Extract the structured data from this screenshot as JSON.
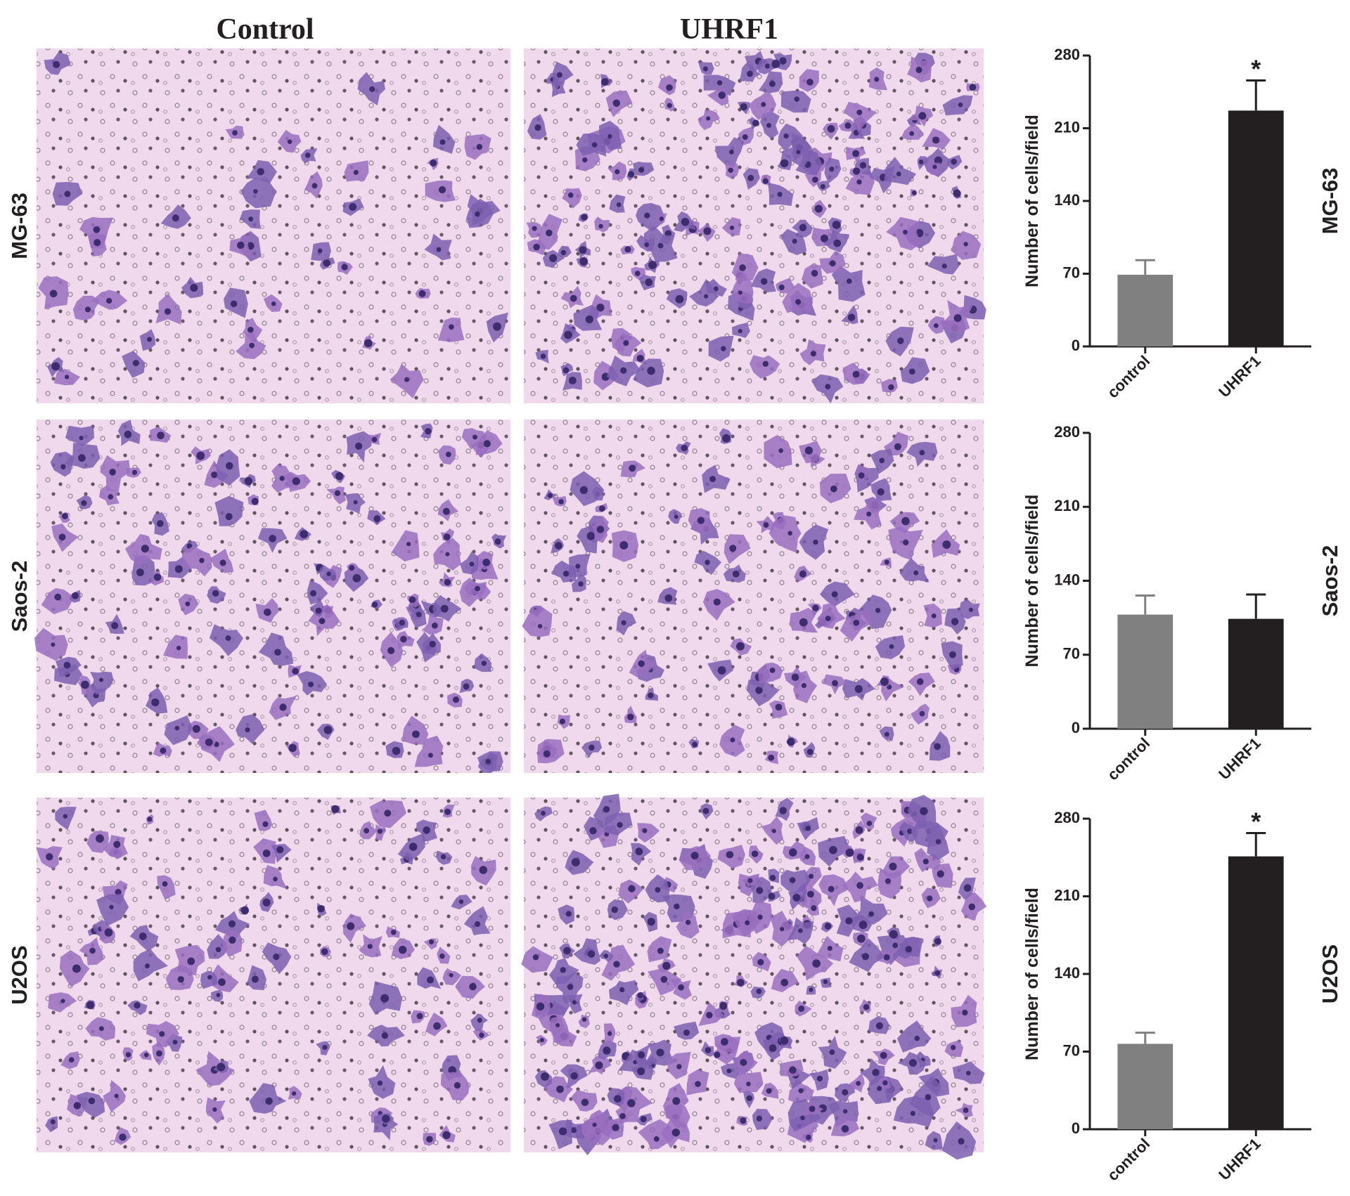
{
  "columns": [
    "Control",
    "UHRF1"
  ],
  "chart_data": [
    {
      "type": "bar",
      "cell_line": "MG-63",
      "ylabel": "Number of cells/field",
      "categories": [
        "control",
        "UHRF1"
      ],
      "values": [
        69,
        227
      ],
      "errors": [
        14,
        29
      ],
      "significance": [
        null,
        "*"
      ],
      "colors": [
        "#808080",
        "#231f20"
      ],
      "ylim": [
        0,
        280
      ],
      "yticks": [
        0,
        70,
        140,
        210,
        280
      ]
    },
    {
      "type": "bar",
      "cell_line": "Saos-2",
      "ylabel": "Number of cells/field",
      "categories": [
        "control",
        "UHRF1"
      ],
      "values": [
        108,
        104
      ],
      "errors": [
        18,
        23
      ],
      "colors": [
        "#808080",
        "#231f20"
      ],
      "ylim": [
        0,
        280
      ],
      "yticks": [
        0,
        70,
        140,
        210,
        280
      ]
    },
    {
      "type": "bar",
      "cell_line": "U2OS",
      "ylabel": "Number of cells/field",
      "categories": [
        "control",
        "UHRF1"
      ],
      "values": [
        77,
        246
      ],
      "errors": [
        10,
        21
      ],
      "significance": [
        null,
        "*"
      ],
      "colors": [
        "#808080",
        "#231f20"
      ],
      "ylim": [
        0,
        280
      ],
      "yticks": [
        0,
        70,
        140,
        210,
        280
      ]
    }
  ]
}
